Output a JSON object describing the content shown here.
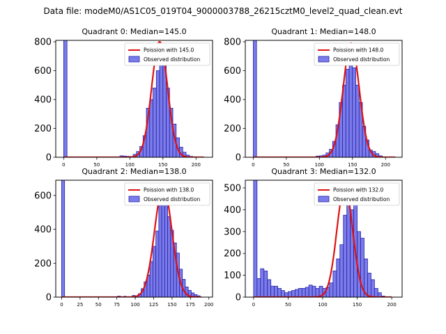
{
  "figure_title": "Data file: modeM0/AS1C05_019T04_9000003788_26215cztM0_level2_quad_clean.evt",
  "colors": {
    "bar_fill": "#7b7bea",
    "bar_edge": "#2323a8",
    "curve": "#e01010"
  },
  "chart_data": [
    {
      "type": "bar",
      "title": "Quadrant 0: Median=145.0",
      "legend": [
        "Poission with 145.0",
        "Observed distribution"
      ],
      "legend_position": "top-right",
      "xlim": [
        -12,
        225
      ],
      "ylim": [
        0,
        810
      ],
      "xticks": [
        0,
        50,
        100,
        150,
        200
      ],
      "yticks": [
        0,
        200,
        400,
        600,
        800
      ],
      "bin_width": 5,
      "bins": [
        [
          0,
          810
        ],
        [
          85,
          10
        ],
        [
          90,
          8
        ],
        [
          95,
          6
        ],
        [
          100,
          5
        ],
        [
          105,
          20
        ],
        [
          110,
          40
        ],
        [
          115,
          75
        ],
        [
          120,
          150
        ],
        [
          125,
          340
        ],
        [
          130,
          400
        ],
        [
          135,
          480
        ],
        [
          140,
          600
        ],
        [
          145,
          760
        ],
        [
          150,
          660
        ],
        [
          155,
          480
        ],
        [
          160,
          340
        ],
        [
          165,
          230
        ],
        [
          170,
          135
        ],
        [
          175,
          70
        ],
        [
          180,
          35
        ],
        [
          185,
          15
        ],
        [
          190,
          6
        ],
        [
          195,
          3
        ]
      ],
      "poisson": {
        "mean": 145.0,
        "peak": 800,
        "xmax": 212
      }
    },
    {
      "type": "bar",
      "title": "Quadrant 1: Median=148.0",
      "legend": [
        "Poission with 148.0",
        "Observed distribution"
      ],
      "legend_position": "top-right",
      "xlim": [
        -12,
        225
      ],
      "ylim": [
        0,
        810
      ],
      "xticks": [
        0,
        50,
        100,
        150,
        200
      ],
      "yticks": [
        0,
        200,
        400,
        600,
        800
      ],
      "bin_width": 5,
      "bins": [
        [
          0,
          810
        ],
        [
          95,
          8
        ],
        [
          100,
          10
        ],
        [
          105,
          15
        ],
        [
          110,
          30
        ],
        [
          115,
          55
        ],
        [
          120,
          110
        ],
        [
          125,
          225
        ],
        [
          130,
          380
        ],
        [
          135,
          500
        ],
        [
          140,
          610
        ],
        [
          145,
          750
        ],
        [
          150,
          620
        ],
        [
          155,
          500
        ],
        [
          160,
          380
        ],
        [
          165,
          215
        ],
        [
          170,
          120
        ],
        [
          175,
          50
        ],
        [
          180,
          40
        ],
        [
          185,
          25
        ],
        [
          190,
          10
        ]
      ],
      "poisson": {
        "mean": 148.0,
        "peak": 790,
        "xmax": 215
      }
    },
    {
      "type": "bar",
      "title": "Quadrant 2: Median=138.0",
      "legend": [
        "Poission with 138.0",
        "Observed distribution"
      ],
      "legend_position": "top-right",
      "xlim": [
        -8,
        205
      ],
      "ylim": [
        0,
        690
      ],
      "xticks": [
        0,
        25,
        50,
        75,
        100,
        125,
        150,
        175,
        200
      ],
      "yticks": [
        0,
        200,
        400,
        600
      ],
      "bin_width": 4,
      "bins": [
        [
          0,
          690
        ],
        [
          76,
          6
        ],
        [
          84,
          5
        ],
        [
          96,
          10
        ],
        [
          104,
          20
        ],
        [
          108,
          50
        ],
        [
          112,
          90
        ],
        [
          116,
          130
        ],
        [
          120,
          210
        ],
        [
          124,
          300
        ],
        [
          128,
          390
        ],
        [
          132,
          555
        ],
        [
          136,
          650
        ],
        [
          140,
          600
        ],
        [
          144,
          475
        ],
        [
          148,
          395
        ],
        [
          152,
          320
        ],
        [
          156,
          260
        ],
        [
          160,
          165
        ],
        [
          164,
          105
        ],
        [
          168,
          60
        ],
        [
          172,
          40
        ],
        [
          176,
          25
        ],
        [
          180,
          15
        ],
        [
          184,
          8
        ]
      ],
      "poisson": {
        "mean": 138.0,
        "peak": 650,
        "xmax": 190
      }
    },
    {
      "type": "bar",
      "title": "Quadrant 3: Median=132.0",
      "legend": [
        "Poission with 132.0",
        "Observed distribution"
      ],
      "legend_position": "top-right",
      "xlim": [
        -12,
        215
      ],
      "ylim": [
        0,
        535
      ],
      "xticks": [
        0,
        50,
        100,
        150,
        200
      ],
      "yticks": [
        0,
        100,
        200,
        300,
        400,
        500
      ],
      "bin_width": 5,
      "bins": [
        [
          0,
          535
        ],
        [
          5,
          85
        ],
        [
          10,
          130
        ],
        [
          15,
          120
        ],
        [
          20,
          80
        ],
        [
          25,
          50
        ],
        [
          30,
          50
        ],
        [
          35,
          40
        ],
        [
          40,
          30
        ],
        [
          45,
          20
        ],
        [
          50,
          25
        ],
        [
          55,
          30
        ],
        [
          60,
          35
        ],
        [
          65,
          40
        ],
        [
          70,
          40
        ],
        [
          75,
          45
        ],
        [
          80,
          55
        ],
        [
          85,
          50
        ],
        [
          90,
          40
        ],
        [
          95,
          50
        ],
        [
          100,
          40
        ],
        [
          105,
          45
        ],
        [
          110,
          65
        ],
        [
          115,
          120
        ],
        [
          120,
          175
        ],
        [
          125,
          240
        ],
        [
          130,
          375
        ],
        [
          135,
          440
        ],
        [
          140,
          400
        ],
        [
          145,
          500
        ],
        [
          150,
          300
        ],
        [
          155,
          270
        ],
        [
          160,
          175
        ],
        [
          165,
          110
        ],
        [
          170,
          80
        ],
        [
          175,
          40
        ],
        [
          180,
          20
        ],
        [
          185,
          5
        ]
      ],
      "poisson": {
        "mean": 132.0,
        "peak": 505,
        "xmax": 200
      }
    }
  ]
}
